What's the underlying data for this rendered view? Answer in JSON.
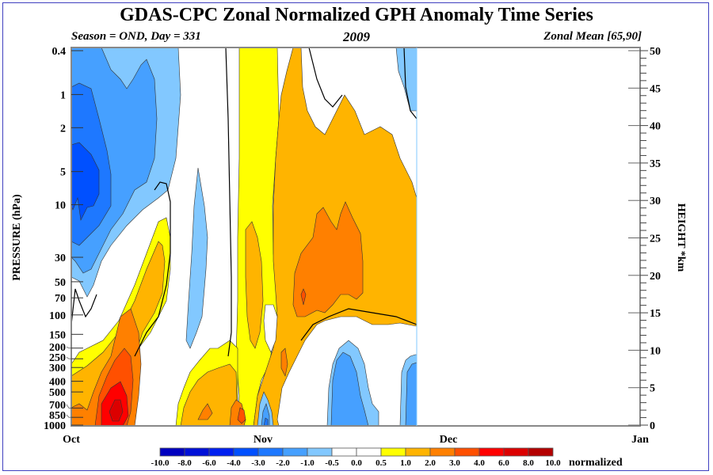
{
  "chart_data": {
    "type": "heatmap",
    "title": "GDAS-CPC Zonal Normalized GPH Anomaly Time Series",
    "subtitle_left": "Season = OND, Day = 331",
    "subtitle_center": "2009",
    "subtitle_right": "Zonal Mean [65,90]",
    "ylabel": "PRESSURE (hPa)",
    "ylabel_right": "HEIGHT *km",
    "colorbar_label": "normalized",
    "x_ticks": [
      "Oct",
      "Nov",
      "Dec",
      "Jan"
    ],
    "x_range_days": [
      0,
      92
    ],
    "x_tick_days": [
      0,
      31,
      61,
      92
    ],
    "data_end_day": 55,
    "y_pressure_ticks": [
      0.4,
      1,
      2,
      5,
      10,
      30,
      50,
      70,
      100,
      150,
      200,
      250,
      300,
      400,
      500,
      700,
      850,
      1000
    ],
    "y_pressure_range": [
      1000,
      0.4
    ],
    "y_height_ticks": [
      0,
      5,
      10,
      15,
      20,
      25,
      30,
      35,
      40,
      45,
      50
    ],
    "y_height_range": [
      0,
      50
    ],
    "contour_levels": [
      -10.0,
      -8.0,
      -6.0,
      -4.0,
      -3.0,
      -2.0,
      -1.0,
      -0.5,
      0.0,
      0.5,
      1.0,
      2.0,
      3.0,
      4.0,
      6.0,
      8.0,
      10.0
    ],
    "level_labels": [
      "-10.0",
      "-8.0",
      "-6.0",
      "-4.0",
      "-3.0",
      "-2.0",
      "-1.0",
      "-0.5",
      "0.0",
      "0.5",
      "1.0",
      "2.0",
      "3.0",
      "4.0",
      "6.0",
      "8.0",
      "10.0"
    ],
    "colors": [
      "#0000c0",
      "#0010d8",
      "#0020f0",
      "#0050ff",
      "#1e78ff",
      "#46a0ff",
      "#82c8ff",
      "#ffffff",
      "#ffffff",
      "#ffff00",
      "#ffb400",
      "#ff8000",
      "#ff5000",
      "#ff0000",
      "#dc0000",
      "#b40000"
    ],
    "features": [
      {
        "name": "upper-strat negative anomaly",
        "days": [
          0,
          14
        ],
        "pressure_hPa": [
          0.4,
          70
        ],
        "min_value": -4.0
      },
      {
        "name": "lower-trop positive anomaly",
        "days": [
          2,
          12
        ],
        "pressure_hPa": [
          150,
          1000
        ],
        "max_value": 6.0
      },
      {
        "name": "strat positive anomaly",
        "days": [
          19,
          55
        ],
        "pressure_hPa": [
          0.4,
          250
        ],
        "max_value": 4.0
      },
      {
        "name": "late trop negative anomaly",
        "days": [
          40,
          55
        ],
        "pressure_hPa": [
          200,
          1000
        ],
        "min_value": -2.0
      }
    ]
  }
}
